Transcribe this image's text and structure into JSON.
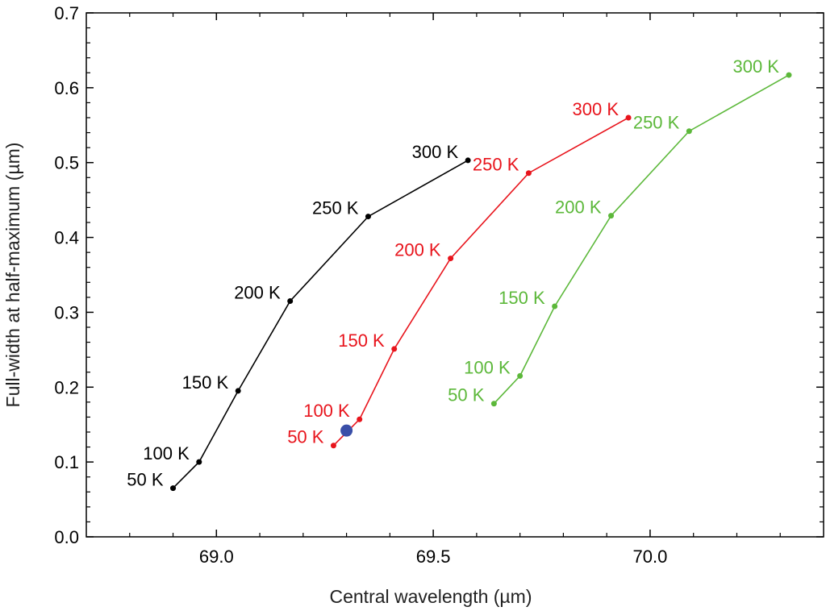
{
  "chart_data": {
    "type": "scatter",
    "xlabel": "Central wavelength (µm)",
    "ylabel": "Full-width at half-maximum (µm)",
    "xlim": [
      68.7,
      70.4
    ],
    "ylim": [
      0.0,
      0.7
    ],
    "xticks": [
      69.0,
      69.5,
      70.0
    ],
    "xtick_labels": [
      "69.0",
      "69.5",
      "70.0"
    ],
    "yticks": [
      0.0,
      0.1,
      0.2,
      0.3,
      0.4,
      0.5,
      0.6,
      0.7
    ],
    "ytick_labels": [
      "0.0",
      "0.1",
      "0.2",
      "0.3",
      "0.4",
      "0.5",
      "0.6",
      "0.7"
    ],
    "grid": false,
    "legend": "none",
    "series": [
      {
        "color": "#000000",
        "label_side": "left",
        "points": [
          {
            "label": "50 K",
            "x": 68.9,
            "y": 0.065
          },
          {
            "label": "100 K",
            "x": 68.96,
            "y": 0.1
          },
          {
            "label": "150 K",
            "x": 69.05,
            "y": 0.195
          },
          {
            "label": "200 K",
            "x": 69.17,
            "y": 0.315
          },
          {
            "label": "250 K",
            "x": 69.35,
            "y": 0.428
          },
          {
            "label": "300 K",
            "x": 69.58,
            "y": 0.503
          }
        ]
      },
      {
        "color": "#e8141c",
        "label_side": "left",
        "points": [
          {
            "label": "50 K",
            "x": 69.27,
            "y": 0.122
          },
          {
            "label": "100 K",
            "x": 69.33,
            "y": 0.157
          },
          {
            "label": "150 K",
            "x": 69.41,
            "y": 0.251
          },
          {
            "label": "200 K",
            "x": 69.54,
            "y": 0.372
          },
          {
            "label": "250 K",
            "x": 69.72,
            "y": 0.486
          },
          {
            "label": "300 K",
            "x": 69.95,
            "y": 0.56
          }
        ]
      },
      {
        "color": "#5cb83a",
        "label_side": "left",
        "points": [
          {
            "label": "50 K",
            "x": 69.64,
            "y": 0.178
          },
          {
            "label": "100 K",
            "x": 69.7,
            "y": 0.215
          },
          {
            "label": "150 K",
            "x": 69.78,
            "y": 0.308
          },
          {
            "label": "200 K",
            "x": 69.91,
            "y": 0.429
          },
          {
            "label": "250 K",
            "x": 70.09,
            "y": 0.542
          },
          {
            "label": "300 K",
            "x": 70.32,
            "y": 0.617
          }
        ]
      }
    ],
    "highlight_point": {
      "x": 69.3,
      "y": 0.142,
      "color": "#3a4fa8"
    }
  }
}
